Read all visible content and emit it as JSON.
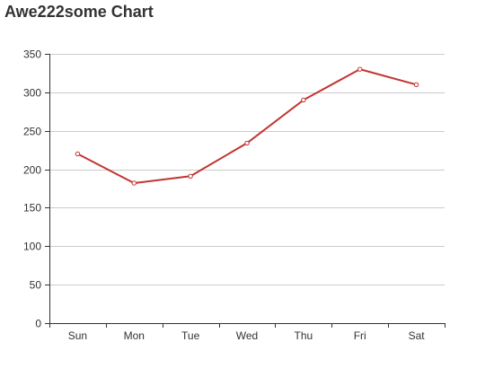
{
  "title": "Awe222some Chart",
  "chart_data": {
    "type": "line",
    "title": "Awe222some Chart",
    "xlabel": "",
    "ylabel": "",
    "categories": [
      "Sun",
      "Mon",
      "Tue",
      "Wed",
      "Thu",
      "Fri",
      "Sat"
    ],
    "series": [
      {
        "values": [
          220,
          182,
          191,
          234,
          290,
          330,
          310
        ],
        "color": "#c23531"
      }
    ],
    "ylim": [
      0,
      350
    ],
    "yticks": [
      0,
      50,
      100,
      150,
      200,
      250,
      300,
      350
    ],
    "grid": true,
    "legend": "none",
    "marker": "hollow-circle"
  }
}
